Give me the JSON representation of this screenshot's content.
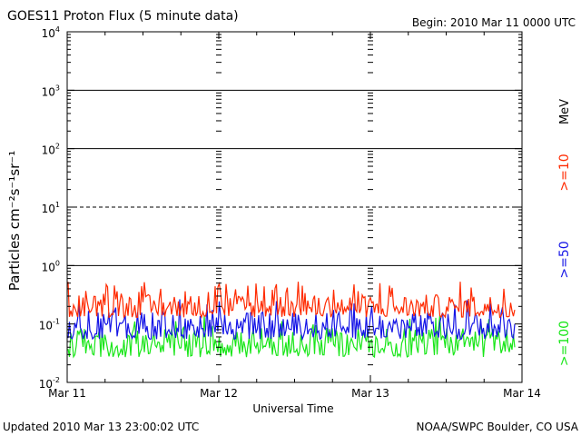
{
  "chart_data": {
    "type": "line",
    "title": "GOES11 Proton Flux (5 minute data)",
    "begin_label": "Begin: 2010 Mar 11 0000 UTC",
    "xlabel": "Universal Time",
    "ylabel": "Particles cm⁻²s⁻¹sr⁻¹",
    "y_scale": "log",
    "ylim": [
      0.01,
      10000
    ],
    "y_ticks": [
      {
        "value": 0.01,
        "base": "10",
        "exp": "-2"
      },
      {
        "value": 0.1,
        "base": "10",
        "exp": "-1"
      },
      {
        "value": 1,
        "base": "10",
        "exp": "0"
      },
      {
        "value": 10,
        "base": "10",
        "exp": "1"
      },
      {
        "value": 100,
        "base": "10",
        "exp": "2"
      },
      {
        "value": 1000,
        "base": "10",
        "exp": "3"
      },
      {
        "value": 10000,
        "base": "10",
        "exp": "4"
      }
    ],
    "xlim": [
      "2010-03-11",
      "2010-03-14"
    ],
    "x_tick_labels": [
      "Mar 11",
      "Mar 12",
      "Mar 13",
      "Mar 14"
    ],
    "threshold_lines": [
      {
        "value": 1,
        "style": "solid"
      },
      {
        "value": 10,
        "style": "dashed"
      },
      {
        "value": 100,
        "style": "solid"
      },
      {
        "value": 1000,
        "style": "solid"
      }
    ],
    "legend_unit": "MeV",
    "series": [
      {
        "name": ">=10",
        "color": "#ff2a00",
        "typical_range": [
          0.13,
          0.32
        ]
      },
      {
        "name": ">=50",
        "color": "#1414e6",
        "typical_range": [
          0.055,
          0.16
        ]
      },
      {
        "name": ">=100",
        "color": "#19e619",
        "typical_range": [
          0.027,
          0.085
        ]
      }
    ]
  },
  "footer": {
    "updated": "Updated 2010 Mar 13 23:00:02 UTC",
    "credit": "NOAA/SWPC Boulder, CO USA"
  }
}
